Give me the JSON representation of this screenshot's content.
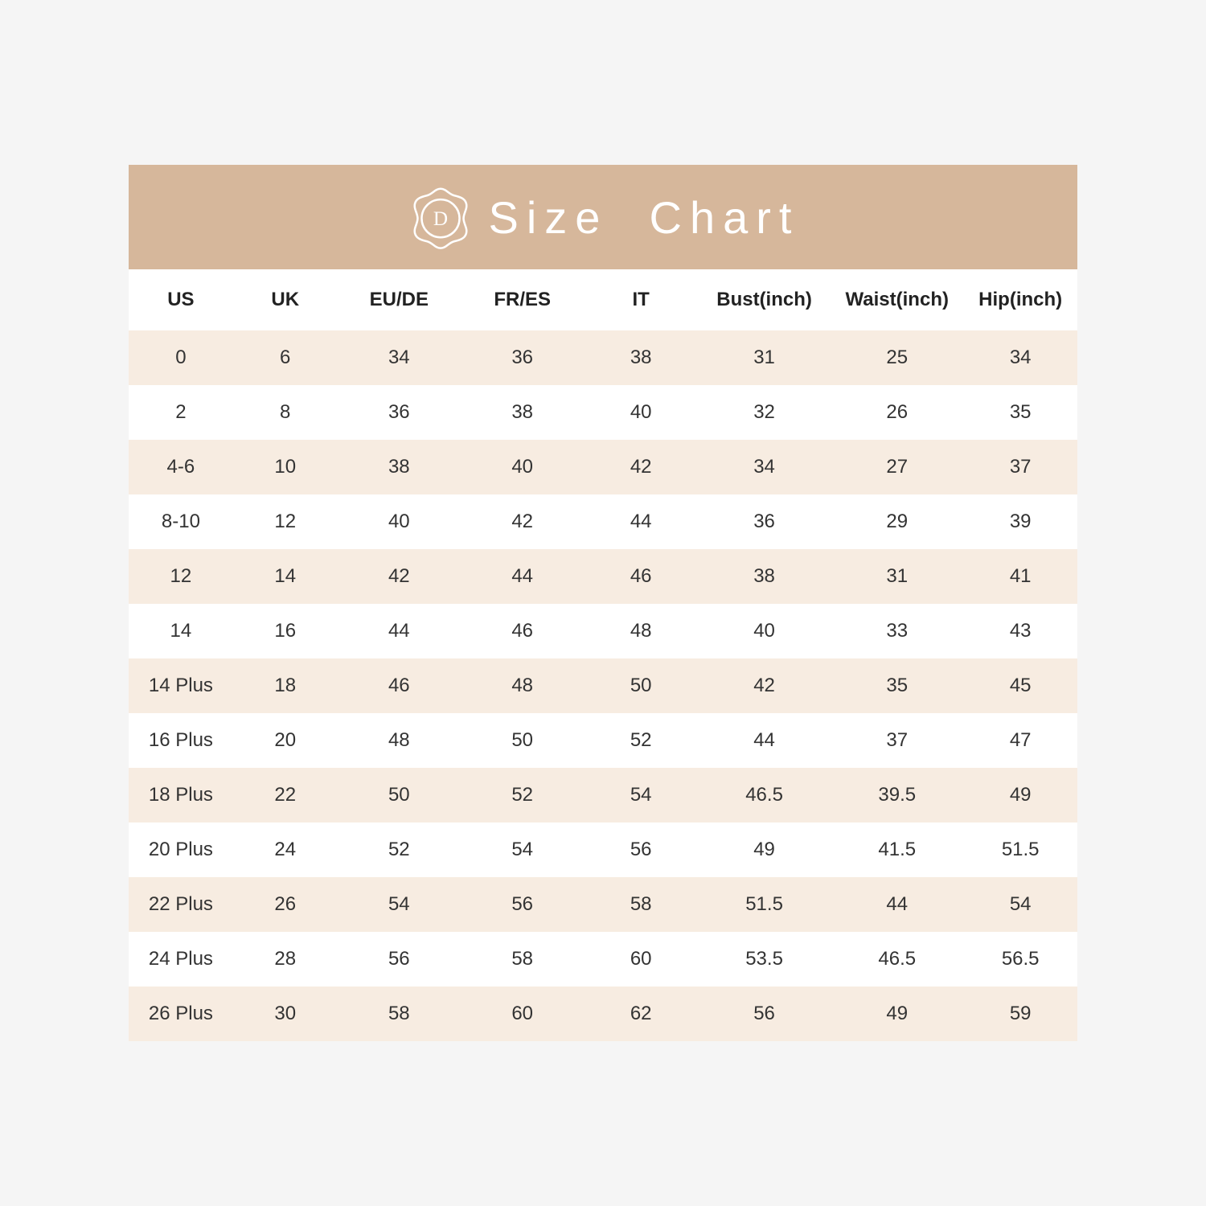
{
  "colors": {
    "page_bg": "#f5f5f5",
    "card_bg": "#ffffff",
    "banner_bg": "#d6b79b",
    "banner_text": "#ffffff",
    "header_text": "#222222",
    "cell_text": "#333333",
    "row_odd_bg": "#f7ece1",
    "row_even_bg": "#ffffff"
  },
  "banner": {
    "title": "Size  Chart",
    "title_fontsize": 56,
    "logo_letter": "D"
  },
  "table": {
    "columns": [
      {
        "key": "us",
        "label": "US"
      },
      {
        "key": "uk",
        "label": "UK"
      },
      {
        "key": "eude",
        "label": "EU/DE"
      },
      {
        "key": "fres",
        "label": "FR/ES"
      },
      {
        "key": "it",
        "label": "IT"
      },
      {
        "key": "bust",
        "label": "Bust(inch)"
      },
      {
        "key": "waist",
        "label": "Waist(inch)"
      },
      {
        "key": "hip",
        "label": "Hip(inch)"
      }
    ],
    "rows": [
      {
        "us": "0",
        "uk": "6",
        "eude": "34",
        "fres": "36",
        "it": "38",
        "bust": "31",
        "waist": "25",
        "hip": "34"
      },
      {
        "us": "2",
        "uk": "8",
        "eude": "36",
        "fres": "38",
        "it": "40",
        "bust": "32",
        "waist": "26",
        "hip": "35"
      },
      {
        "us": "4-6",
        "uk": "10",
        "eude": "38",
        "fres": "40",
        "it": "42",
        "bust": "34",
        "waist": "27",
        "hip": "37"
      },
      {
        "us": "8-10",
        "uk": "12",
        "eude": "40",
        "fres": "42",
        "it": "44",
        "bust": "36",
        "waist": "29",
        "hip": "39"
      },
      {
        "us": "12",
        "uk": "14",
        "eude": "42",
        "fres": "44",
        "it": "46",
        "bust": "38",
        "waist": "31",
        "hip": "41"
      },
      {
        "us": "14",
        "uk": "16",
        "eude": "44",
        "fres": "46",
        "it": "48",
        "bust": "40",
        "waist": "33",
        "hip": "43"
      },
      {
        "us": "14 Plus",
        "uk": "18",
        "eude": "46",
        "fres": "48",
        "it": "50",
        "bust": "42",
        "waist": "35",
        "hip": "45"
      },
      {
        "us": "16 Plus",
        "uk": "20",
        "eude": "48",
        "fres": "50",
        "it": "52",
        "bust": "44",
        "waist": "37",
        "hip": "47"
      },
      {
        "us": "18 Plus",
        "uk": "22",
        "eude": "50",
        "fres": "52",
        "it": "54",
        "bust": "46.5",
        "waist": "39.5",
        "hip": "49"
      },
      {
        "us": "20 Plus",
        "uk": "24",
        "eude": "52",
        "fres": "54",
        "it": "56",
        "bust": "49",
        "waist": "41.5",
        "hip": "51.5"
      },
      {
        "us": "22 Plus",
        "uk": "26",
        "eude": "54",
        "fres": "56",
        "it": "58",
        "bust": "51.5",
        "waist": "44",
        "hip": "54"
      },
      {
        "us": "24 Plus",
        "uk": "28",
        "eude": "56",
        "fres": "58",
        "it": "60",
        "bust": "53.5",
        "waist": "46.5",
        "hip": "56.5"
      },
      {
        "us": "26 Plus",
        "uk": "30",
        "eude": "58",
        "fres": "60",
        "it": "62",
        "bust": "56",
        "waist": "49",
        "hip": "59"
      }
    ],
    "header_fontsize": 24,
    "cell_fontsize": 24
  }
}
